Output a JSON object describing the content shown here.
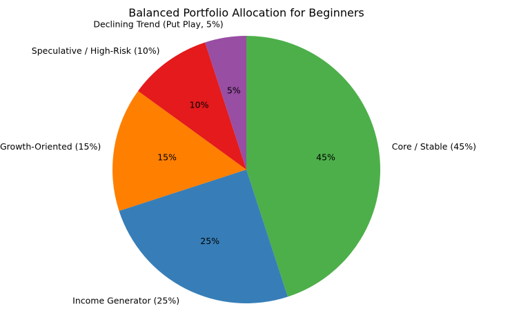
{
  "chart_data": {
    "type": "pie",
    "title": "Balanced Portfolio Allocation for Beginners",
    "start_angle_deg": 90,
    "direction": "clockwise",
    "slices": [
      {
        "label": "Core / Stable (45%)",
        "value": 45,
        "pct_label": "45%",
        "color": "#4daf4a"
      },
      {
        "label": "Income Generator (25%)",
        "value": 25,
        "pct_label": "25%",
        "color": "#377eb8"
      },
      {
        "label": "Growth-Oriented (15%)",
        "value": 15,
        "pct_label": "15%",
        "color": "#ff7f00"
      },
      {
        "label": "Speculative / High-Risk (10%)",
        "value": 10,
        "pct_label": "10%",
        "color": "#e41a1c"
      },
      {
        "label": "Declining Trend (Put Play, 5%)",
        "value": 5,
        "pct_label": "5%",
        "color": "#984ea3"
      }
    ]
  }
}
